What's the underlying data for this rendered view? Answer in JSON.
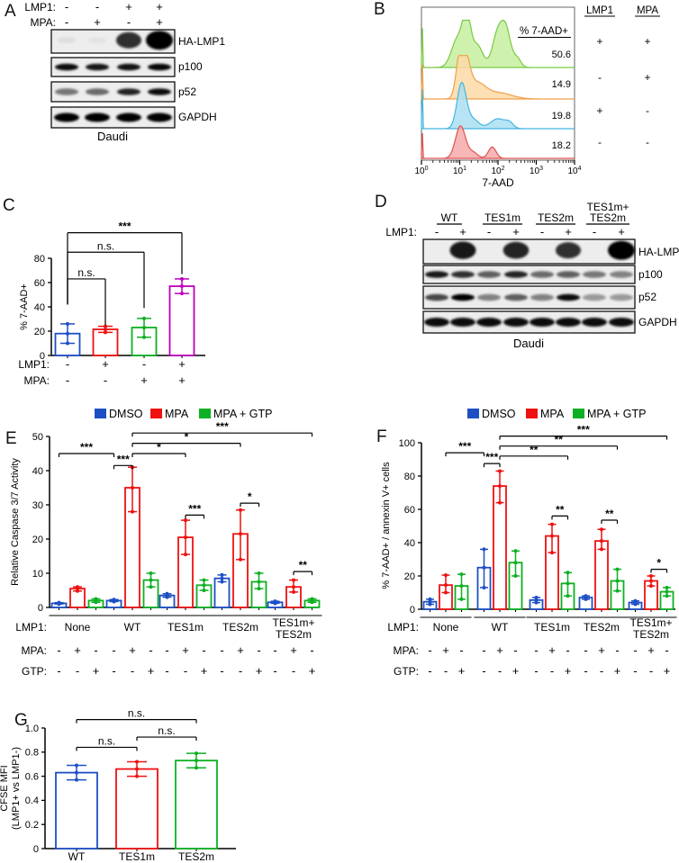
{
  "figure": {
    "background": "#ffffff",
    "panel_letters": [
      "A",
      "B",
      "C",
      "D",
      "E",
      "F",
      "G"
    ]
  },
  "colors": {
    "dmso_blue": "#1d4fc4",
    "mpa_red": "#ee1111",
    "gtp_green": "#0db022",
    "magenta": "#bb00bb"
  },
  "panels": {
    "A": {
      "letter": "A",
      "header_rows": [
        {
          "label": "LMP1:",
          "values": [
            "-",
            "-",
            "+",
            "+"
          ]
        },
        {
          "label": "MPA:",
          "values": [
            "-",
            "+",
            "-",
            "+"
          ]
        }
      ],
      "blots": [
        {
          "label": "HA-LMP1",
          "style": "blob",
          "bands": [
            0.06,
            0.04,
            0.8,
            1.0
          ]
        },
        {
          "label": "p100",
          "style": "band",
          "bands": [
            0.95,
            0.9,
            0.92,
            0.97
          ]
        },
        {
          "label": "p52",
          "style": "band",
          "bands": [
            0.5,
            0.55,
            0.85,
            0.95
          ]
        },
        {
          "label": "GAPDH",
          "style": "thick",
          "bands": [
            1,
            1,
            1,
            1
          ]
        }
      ],
      "cell_line": "Daudi"
    },
    "B": {
      "letter": "B",
      "header": "% 7-AAD+",
      "columns": [
        "LMP1",
        "MPA"
      ],
      "rows": [
        {
          "pct": "50.6",
          "lmp1": "+",
          "mpa": "+",
          "color": "green"
        },
        {
          "pct": "14.9",
          "lmp1": "-",
          "mpa": "+",
          "color": "orange"
        },
        {
          "pct": "19.8",
          "lmp1": "+",
          "mpa": "-",
          "color": "blue"
        },
        {
          "pct": "18.2",
          "lmp1": "-",
          "mpa": "-",
          "color": "red"
        }
      ],
      "xlabel": "7-AAD",
      "x_tick_exponents": [
        0,
        1,
        2,
        3,
        4
      ]
    },
    "D": {
      "letter": "D",
      "groups": [
        {
          "lines": [
            "WT"
          ]
        },
        {
          "lines": [
            "TES1m"
          ]
        },
        {
          "lines": [
            "TES2m"
          ]
        },
        {
          "lines": [
            "TES1m+",
            "TES2m"
          ]
        }
      ],
      "lmp1_row": {
        "label": "LMP1:",
        "values": [
          "-",
          "+",
          "-",
          "+",
          "-",
          "+",
          "-",
          "+"
        ]
      },
      "blots": [
        {
          "label": "HA-LMP1",
          "style": "blob",
          "bands": [
            0,
            0.9,
            0,
            0.85,
            0,
            0.8,
            0,
            1.0
          ]
        },
        {
          "label": "p100",
          "style": "band",
          "bands": [
            0.9,
            0.8,
            0.6,
            0.85,
            0.55,
            0.6,
            0.5,
            0.45
          ]
        },
        {
          "label": "p52",
          "style": "band",
          "bands": [
            0.7,
            1.0,
            0.45,
            0.6,
            0.45,
            0.95,
            0.35,
            0.35
          ]
        },
        {
          "label": "GAPDH",
          "style": "thick",
          "bands": [
            0.95,
            0.95,
            0.95,
            0.95,
            0.95,
            0.95,
            0.95,
            0.95
          ]
        }
      ],
      "cell_line": "Daudi"
    }
  },
  "chart_data": [
    {
      "id": "B",
      "type": "flow-histogram",
      "xlabel": "7-AAD",
      "xscale": "log10",
      "xrange_decades": [
        0,
        4
      ],
      "curves": [
        {
          "name": "LMP1+ MPA+",
          "pct": 50.6,
          "stroke": "#7ac943",
          "fill": "#c6f0a0",
          "components": [
            [
              0.02,
              0.012,
              0.95
            ],
            [
              0.95,
              0.16,
              0.65
            ],
            [
              1.18,
              0.1,
              1.0
            ],
            [
              1.45,
              0.15,
              0.5
            ],
            [
              2.0,
              0.14,
              0.78
            ],
            [
              2.22,
              0.12,
              0.72
            ],
            [
              2.5,
              0.1,
              0.2
            ]
          ]
        },
        {
          "name": "LMP1- MPA+",
          "pct": 14.9,
          "stroke": "#f0a04a",
          "fill": "#fbd9a6",
          "components": [
            [
              0.02,
              0.012,
              0.9
            ],
            [
              1.0,
              0.1,
              0.85
            ],
            [
              1.15,
              0.12,
              0.85
            ],
            [
              1.45,
              0.22,
              0.35
            ],
            [
              2.0,
              0.35,
              0.15
            ]
          ]
        },
        {
          "name": "LMP1+ MPA-",
          "pct": 19.8,
          "stroke": "#45b5e0",
          "fill": "#aadff2",
          "components": [
            [
              0.02,
              0.012,
              0.95
            ],
            [
              1.05,
              0.12,
              1.0
            ],
            [
              1.35,
              0.15,
              0.2
            ],
            [
              2.0,
              0.2,
              0.22
            ],
            [
              2.3,
              0.1,
              0.1
            ]
          ]
        },
        {
          "name": "LMP1- MPA-",
          "pct": 18.2,
          "stroke": "#e05252",
          "fill": "#f6aaaa",
          "components": [
            [
              0.02,
              0.012,
              0.85
            ],
            [
              1.02,
              0.13,
              1.0
            ],
            [
              1.35,
              0.12,
              0.18
            ],
            [
              1.85,
              0.1,
              0.35
            ]
          ]
        }
      ]
    },
    {
      "id": "C",
      "type": "bar",
      "ylabel": "% 7-AAD+",
      "ylim": [
        0,
        80
      ],
      "yticks": [
        0,
        20,
        40,
        60,
        80
      ],
      "bars": [
        {
          "value": 18,
          "lo": 10,
          "hi": 26,
          "color": "#1d4fc4"
        },
        {
          "value": 21.5,
          "lo": 19,
          "hi": 24,
          "color": "#ee1111"
        },
        {
          "value": 23,
          "lo": 15,
          "hi": 30.5,
          "color": "#0db022"
        },
        {
          "value": 57,
          "lo": 51,
          "hi": 63,
          "color": "#bb00bb"
        }
      ],
      "condition_rows": [
        {
          "label": "LMP1:",
          "values": [
            "-",
            "+",
            "-",
            "+"
          ]
        },
        {
          "label": "MPA:",
          "values": [
            "-",
            "-",
            "+",
            "+"
          ]
        }
      ],
      "brackets": [
        {
          "label": "n.s.",
          "a": 0,
          "b": 1,
          "y": 63,
          "d1": 21,
          "d2": 38
        },
        {
          "label": "n.s.",
          "a": 0,
          "b": 2,
          "y": 85,
          "d1": 43,
          "d2": 46
        },
        {
          "label": "***",
          "a": 0,
          "b": 3,
          "y": 101,
          "d1": 59,
          "d2": 34
        }
      ]
    },
    {
      "id": "E",
      "type": "grouped-bar",
      "ylabel": "Relative Caspase 3/7 Activity",
      "ylim": [
        0,
        50
      ],
      "yticks": [
        0,
        10,
        20,
        30,
        40,
        50
      ],
      "legend": [
        {
          "label": "DMSO",
          "color": "#1d4fc4"
        },
        {
          "label": "MPA",
          "color": "#ee1111"
        },
        {
          "label": "MPA + GTP",
          "color": "#0db022"
        }
      ],
      "group_row_label": "LMP1:",
      "groups": [
        [
          "None"
        ],
        [
          "WT"
        ],
        [
          "TES1m"
        ],
        [
          "TES2m"
        ],
        [
          "TES1m+",
          "TES2m"
        ]
      ],
      "series": [
        {
          "name": "DMSO",
          "color": "#1d4fc4",
          "values": [
            1.2,
            2,
            3.5,
            8.5,
            1.5
          ],
          "lo": [
            1,
            1.7,
            3,
            7.5,
            1.2
          ],
          "hi": [
            1.4,
            2.3,
            4,
            9.5,
            1.8
          ]
        },
        {
          "name": "MPA",
          "color": "#ee1111",
          "values": [
            5.5,
            35,
            20.5,
            21.5,
            6
          ],
          "lo": [
            4.8,
            28,
            15.5,
            14,
            4.5
          ],
          "hi": [
            6,
            41,
            25.5,
            28.5,
            8
          ]
        },
        {
          "name": "MPA + GTP",
          "color": "#0db022",
          "values": [
            2,
            8,
            6.5,
            7.5,
            2
          ],
          "lo": [
            1.5,
            6,
            5,
            5.5,
            1.5
          ],
          "hi": [
            2.5,
            10,
            8,
            10,
            2.5
          ]
        }
      ],
      "condition_rows": [
        {
          "label": "MPA:",
          "pattern": [
            "-",
            "+",
            "-"
          ]
        },
        {
          "label": "GTP:",
          "pattern": [
            "-",
            "-",
            "+"
          ]
        }
      ],
      "brackets": [
        {
          "label": "***",
          "a": 0,
          "b": 3,
          "y": 45
        },
        {
          "label": "***",
          "a": 3,
          "b": 4,
          "y": 41.5
        },
        {
          "label": "*",
          "a": 4,
          "b": 7,
          "y": 45
        },
        {
          "label": "*",
          "a": 4,
          "b": 10,
          "y": 48
        },
        {
          "label": "***",
          "a": 4,
          "b": 14,
          "y": 51
        },
        {
          "label": "***",
          "a": 7,
          "b": 8,
          "y": 27
        },
        {
          "label": "*",
          "a": 10,
          "b": 11,
          "y": 30.5
        },
        {
          "label": "**",
          "a": 13,
          "b": 14,
          "y": 10.5
        }
      ]
    },
    {
      "id": "F",
      "type": "grouped-bar",
      "ylabel": "% 7-AAD+ / annexin V+ cells",
      "ylim": [
        0,
        100
      ],
      "yticks": [
        0,
        20,
        40,
        60,
        80,
        100
      ],
      "legend": [
        {
          "label": "DMSO",
          "color": "#1d4fc4"
        },
        {
          "label": "MPA",
          "color": "#ee1111"
        },
        {
          "label": "MPA + GTP",
          "color": "#0db022"
        }
      ],
      "group_row_label": "LMP1:",
      "groups": [
        [
          "None"
        ],
        [
          "WT"
        ],
        [
          "TES1m"
        ],
        [
          "TES2m"
        ],
        [
          "TES1m+",
          "TES2m"
        ]
      ],
      "series": [
        {
          "name": "DMSO",
          "color": "#1d4fc4",
          "values": [
            4.5,
            25,
            5.5,
            7,
            4
          ],
          "lo": [
            3,
            13,
            4,
            6,
            3
          ],
          "hi": [
            6,
            36,
            7,
            8,
            5
          ]
        },
        {
          "name": "MPA",
          "color": "#ee1111",
          "values": [
            14.5,
            74,
            44,
            41,
            17
          ],
          "lo": [
            10,
            64,
            34,
            36,
            14
          ],
          "hi": [
            20.5,
            83,
            51,
            48,
            20
          ]
        },
        {
          "name": "MPA + GTP",
          "color": "#0db022",
          "values": [
            14,
            28,
            15.5,
            17,
            10.5
          ],
          "lo": [
            6,
            20,
            8,
            11,
            8
          ],
          "hi": [
            21,
            35,
            22,
            24,
            13
          ]
        }
      ],
      "condition_rows": [
        {
          "label": "MPA:",
          "pattern": [
            "-",
            "+",
            "-"
          ]
        },
        {
          "label": "GTP:",
          "pattern": [
            "-",
            "-",
            "+"
          ]
        }
      ],
      "brackets": [
        {
          "label": "***",
          "a": 1,
          "b": 3,
          "y": 94
        },
        {
          "label": "***",
          "a": 3,
          "b": 4,
          "y": 87.5
        },
        {
          "label": "**",
          "a": 4,
          "b": 8,
          "y": 92
        },
        {
          "label": "**",
          "a": 4,
          "b": 11,
          "y": 98
        },
        {
          "label": "***",
          "a": 4,
          "b": 14,
          "y": 104
        },
        {
          "label": "**",
          "a": 7,
          "b": 8,
          "y": 56
        },
        {
          "label": "**",
          "a": 10,
          "b": 11,
          "y": 53.5
        },
        {
          "label": "*",
          "a": 13,
          "b": 14,
          "y": 24
        }
      ]
    },
    {
      "id": "G",
      "type": "bar",
      "ylabel_lines": [
        "CFSE MFI",
        "(LMP1+ vs LMP1-)"
      ],
      "ylim": [
        0,
        1
      ],
      "yticks": [
        "0",
        "0.2",
        "0.4",
        "0.6",
        "0.8",
        "1.0"
      ],
      "categories": [
        "WT",
        "TES1m",
        "TES2m"
      ],
      "bars": [
        {
          "value": 0.63,
          "lo": 0.57,
          "hi": 0.69,
          "color": "#1d4fc4"
        },
        {
          "value": 0.66,
          "lo": 0.6,
          "hi": 0.72,
          "color": "#ee1111"
        },
        {
          "value": 0.73,
          "lo": 0.67,
          "hi": 0.79,
          "color": "#0db022"
        }
      ],
      "brackets": [
        {
          "label": "n.s.",
          "a": 0,
          "b": 1,
          "y": 0.84
        },
        {
          "label": "n.s.",
          "a": 1,
          "b": 2,
          "y": 0.925
        },
        {
          "label": "n.s.",
          "a": 0,
          "b": 2,
          "y": 1.07
        }
      ]
    }
  ]
}
